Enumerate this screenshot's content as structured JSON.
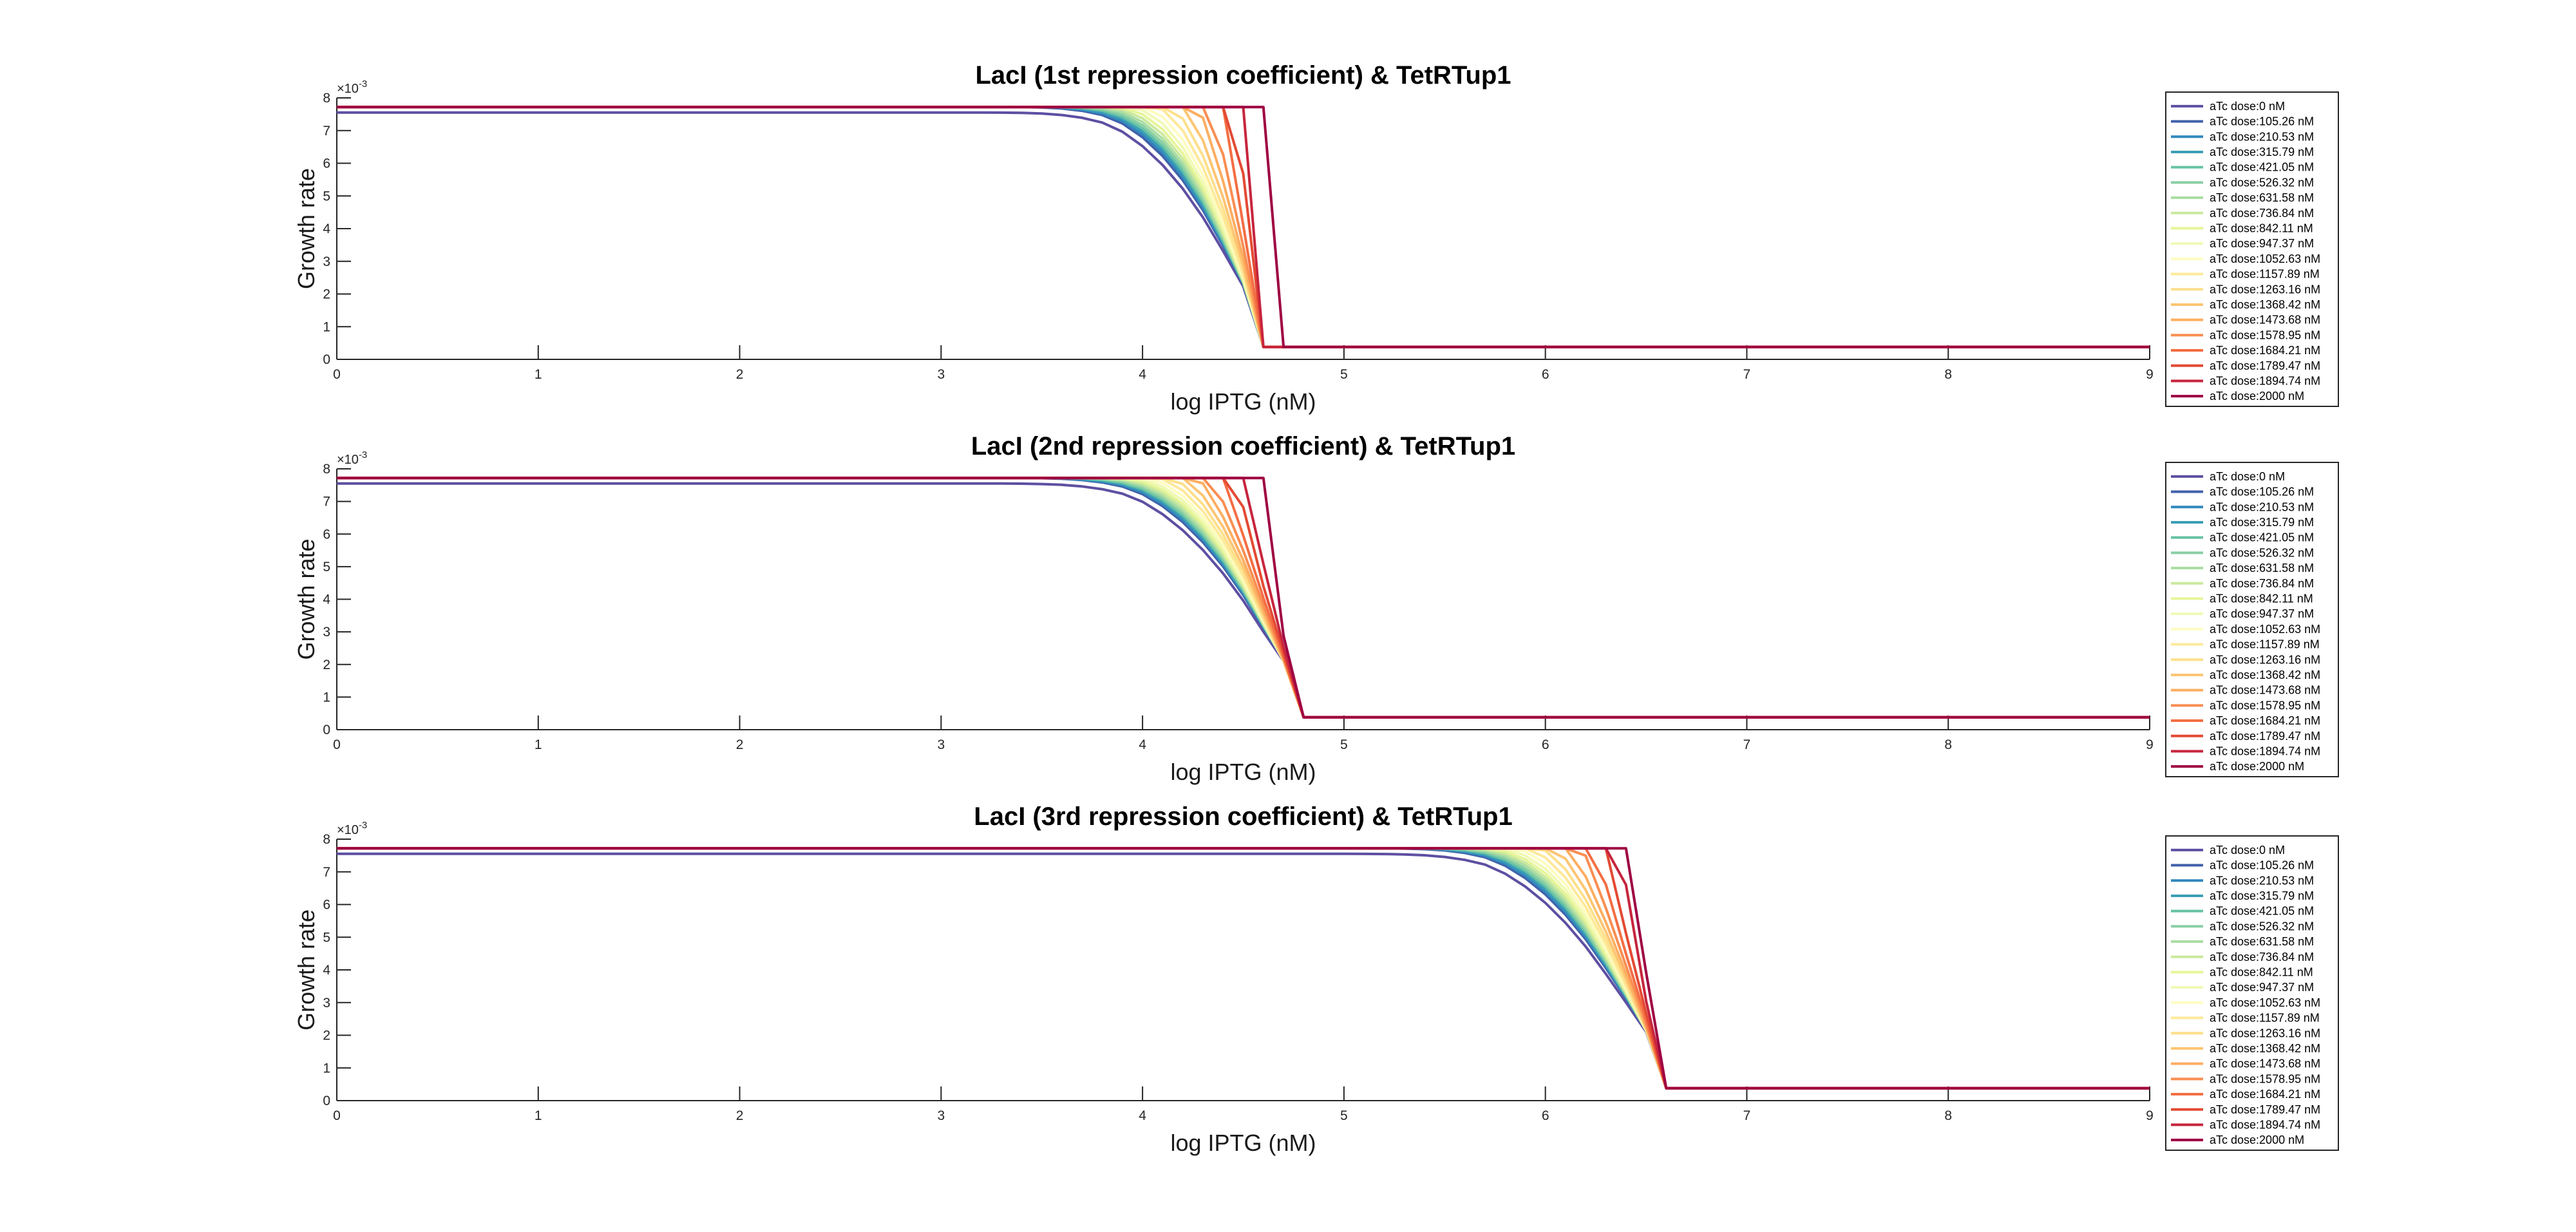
{
  "chart_data": [
    {
      "type": "line",
      "title": "LacI (1st repression coefficient) & TetRTup1",
      "xlabel": "log IPTG (nM)",
      "ylabel": "Growth rate",
      "y_exponent_base": "×10",
      "y_exponent_power": "-3",
      "xlim": [
        0,
        9
      ],
      "ylim": [
        0,
        8
      ],
      "x_ticks": [
        "0",
        "1",
        "2",
        "3",
        "4",
        "5",
        "6",
        "7",
        "8",
        "9"
      ],
      "y_ticks": [
        "0",
        "1",
        "2",
        "3",
        "4",
        "5",
        "6",
        "7",
        "8"
      ],
      "grid": false,
      "legend_position": "outside-right",
      "transition_start": 3.1,
      "transition_end": 4.6,
      "curve_base": 3.1,
      "curve_width": 1.35,
      "knee_x": 4.6
    },
    {
      "type": "line",
      "title": "LacI (2nd repression coefficient) & TetRTup1",
      "xlabel": "log IPTG (nM)",
      "ylabel": "Growth rate",
      "y_exponent_base": "×10",
      "y_exponent_power": "-3",
      "xlim": [
        0,
        9
      ],
      "ylim": [
        0,
        8
      ],
      "x_ticks": [
        "0",
        "1",
        "2",
        "3",
        "4",
        "5",
        "6",
        "7",
        "8",
        "9"
      ],
      "y_ticks": [
        "0",
        "1",
        "2",
        "3",
        "4",
        "5",
        "6",
        "7",
        "8"
      ],
      "grid": false,
      "legend_position": "outside-right",
      "transition_start": 3.1,
      "transition_end": 4.6,
      "curve_base": 3.15,
      "curve_width": 1.45,
      "knee_x": 4.8
    },
    {
      "type": "line",
      "title": "LacI (3rd repression coefficient) & TetRTup1",
      "xlabel": "log IPTG (nM)",
      "ylabel": "Growth rate",
      "y_exponent_base": "×10",
      "y_exponent_power": "-3",
      "xlim": [
        0,
        9
      ],
      "ylim": [
        0,
        8
      ],
      "x_ticks": [
        "0",
        "1",
        "2",
        "3",
        "4",
        "5",
        "6",
        "7",
        "8",
        "9"
      ],
      "y_ticks": [
        "0",
        "1",
        "2",
        "3",
        "4",
        "5",
        "6",
        "7",
        "8"
      ],
      "grid": false,
      "legend_position": "outside-right",
      "transition_start": 4.9,
      "transition_end": 6.45,
      "curve_base": 4.95,
      "curve_width": 1.4,
      "knee_x": 6.6
    }
  ],
  "series_legend": [
    {
      "name": "aTc dose:0 nM",
      "color": "#5e4fa2"
    },
    {
      "name": "aTc dose:105.26 nM",
      "color": "#4061ab"
    },
    {
      "name": "aTc dose:210.53 nM",
      "color": "#3288bd"
    },
    {
      "name": "aTc dose:315.79 nM",
      "color": "#3c9fb5"
    },
    {
      "name": "aTc dose:421.05 nM",
      "color": "#66c2a5"
    },
    {
      "name": "aTc dose:526.32 nM",
      "color": "#8acfa4"
    },
    {
      "name": "aTc dose:631.58 nM",
      "color": "#abdda4"
    },
    {
      "name": "aTc dose:736.84 nM",
      "color": "#cbe99e"
    },
    {
      "name": "aTc dose:842.11 nM",
      "color": "#e6f598"
    },
    {
      "name": "aTc dose:947.37 nM",
      "color": "#f1f9b5"
    },
    {
      "name": "aTc dose:1052.63 nM",
      "color": "#fefcc0"
    },
    {
      "name": "aTc dose:1157.89 nM",
      "color": "#fee99a"
    },
    {
      "name": "aTc dose:1263.16 nM",
      "color": "#fee08b"
    },
    {
      "name": "aTc dose:1368.42 nM",
      "color": "#fdc573"
    },
    {
      "name": "aTc dose:1473.68 nM",
      "color": "#fdae61"
    },
    {
      "name": "aTc dose:1578.95 nM",
      "color": "#f98e52"
    },
    {
      "name": "aTc dose:1684.21 nM",
      "color": "#f46d43"
    },
    {
      "name": "aTc dose:1789.47 nM",
      "color": "#e34a33"
    },
    {
      "name": "aTc dose:1894.74 nM",
      "color": "#c7253d"
    },
    {
      "name": "aTc dose:2000 nM",
      "color": "#9e0142"
    }
  ],
  "model": {
    "y_high_first": 7.55,
    "y_high_rest": 7.72,
    "y_floor": 0.38,
    "knee_y": 2.0
  }
}
